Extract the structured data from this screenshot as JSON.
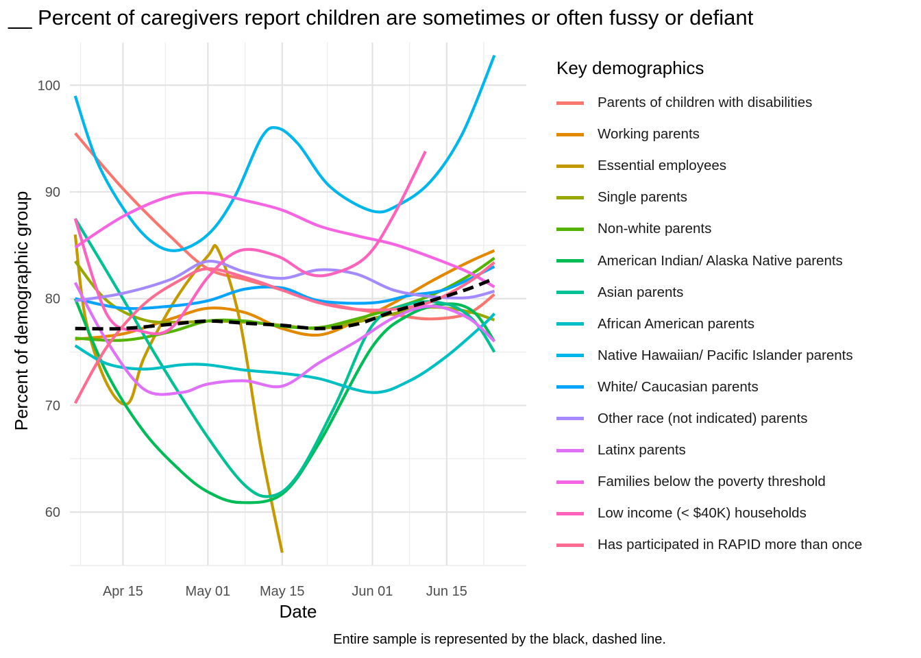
{
  "title": "__ Percent of caregivers report  children are sometimes or often fussy or defiant",
  "caption": "Entire sample is represented by the black, dashed line.",
  "chart_data": {
    "type": "line",
    "xlabel": "Date",
    "ylabel": "Percent of demographic group",
    "x_tick_labels": [
      "Apr 15",
      "May 01",
      "May 15",
      "Jun 01",
      "Jun 15"
    ],
    "x_ticks": [
      "2020-04-15",
      "2020-05-01",
      "2020-05-15",
      "2020-06-01",
      "2020-06-15"
    ],
    "x_range": [
      "2020-04-05",
      "2020-06-30"
    ],
    "y_ticks": [
      60,
      70,
      80,
      90,
      100
    ],
    "y_range": [
      55,
      104
    ],
    "grid": true,
    "legend_title": "Key demographics",
    "legend_position": "right",
    "series": [
      {
        "name": "Parents of children with disabilities",
        "color": "#F8766D",
        "x": [
          "2020-04-06",
          "2020-04-15",
          "2020-04-24",
          "2020-05-01",
          "2020-05-08",
          "2020-05-15",
          "2020-05-22",
          "2020-05-29",
          "2020-06-05",
          "2020-06-12",
          "2020-06-19",
          "2020-06-24"
        ],
        "y": [
          95.5,
          90.3,
          85.8,
          82.8,
          81.8,
          80.8,
          79.7,
          79.0,
          78.5,
          78.1,
          78.6,
          80.4
        ]
      },
      {
        "name": "Working parents",
        "color": "#E38900",
        "x": [
          "2020-04-06",
          "2020-04-15",
          "2020-04-24",
          "2020-05-01",
          "2020-05-08",
          "2020-05-15",
          "2020-05-22",
          "2020-05-29",
          "2020-06-05",
          "2020-06-12",
          "2020-06-19",
          "2020-06-24"
        ],
        "y": [
          76.2,
          76.7,
          78.1,
          79.1,
          78.7,
          77.2,
          76.6,
          77.9,
          79.6,
          81.6,
          83.4,
          84.5
        ]
      },
      {
        "name": "Essential employees",
        "color": "#C49A00",
        "x": [
          "2020-04-06",
          "2020-04-08",
          "2020-04-12",
          "2020-04-16",
          "2020-04-19",
          "2020-04-25",
          "2020-05-01",
          "2020-05-03",
          "2020-05-07",
          "2020-05-11",
          "2020-05-15"
        ],
        "y": [
          86.0,
          78.0,
          72.0,
          70.2,
          74.5,
          80.0,
          84.0,
          84.5,
          78.0,
          66.0,
          56.2
        ]
      },
      {
        "name": "Single parents",
        "color": "#99A800",
        "x": [
          "2020-04-06",
          "2020-04-12",
          "2020-04-19",
          "2020-04-26",
          "2020-05-01",
          "2020-05-08",
          "2020-05-15",
          "2020-05-22",
          "2020-05-29",
          "2020-06-05",
          "2020-06-12",
          "2020-06-19",
          "2020-06-24"
        ],
        "y": [
          83.5,
          79.8,
          78.0,
          77.8,
          77.9,
          77.8,
          77.5,
          77.2,
          77.8,
          78.6,
          79.2,
          78.8,
          78.0
        ]
      },
      {
        "name": "Non-white parents",
        "color": "#53B400",
        "x": [
          "2020-04-06",
          "2020-04-15",
          "2020-04-24",
          "2020-05-01",
          "2020-05-08",
          "2020-05-15",
          "2020-05-22",
          "2020-05-29",
          "2020-06-05",
          "2020-06-12",
          "2020-06-19",
          "2020-06-24"
        ],
        "y": [
          76.3,
          76.1,
          76.9,
          77.9,
          77.9,
          77.4,
          77.3,
          78.1,
          79.1,
          80.3,
          82.1,
          83.8
        ]
      },
      {
        "name": "American Indian/ Alaska Native parents",
        "color": "#00BC56",
        "x": [
          "2020-04-06",
          "2020-04-12",
          "2020-04-19",
          "2020-04-26",
          "2020-05-01",
          "2020-05-07",
          "2020-05-15",
          "2020-05-22",
          "2020-06-01",
          "2020-06-08",
          "2020-06-15",
          "2020-06-20",
          "2020-06-24"
        ],
        "y": [
          80.0,
          73.0,
          67.5,
          63.8,
          61.9,
          60.9,
          61.7,
          66.5,
          75.5,
          78.5,
          79.5,
          78.8,
          76.0
        ]
      },
      {
        "name": "Asian parents",
        "color": "#00C094",
        "x": [
          "2020-04-06",
          "2020-04-15",
          "2020-04-22",
          "2020-05-01",
          "2020-05-08",
          "2020-05-13",
          "2020-05-18",
          "2020-05-25",
          "2020-06-01",
          "2020-06-08",
          "2020-06-15",
          "2020-06-20",
          "2020-06-24"
        ],
        "y": [
          87.5,
          80.0,
          74.0,
          67.0,
          62.5,
          61.5,
          63.5,
          70.0,
          77.5,
          79.5,
          79.5,
          78.0,
          75.0
        ]
      },
      {
        "name": "African American parents",
        "color": "#00BFC4",
        "x": [
          "2020-04-06",
          "2020-04-12",
          "2020-04-19",
          "2020-04-26",
          "2020-05-01",
          "2020-05-08",
          "2020-05-15",
          "2020-05-22",
          "2020-06-01",
          "2020-06-08",
          "2020-06-15",
          "2020-06-22",
          "2020-06-24"
        ],
        "y": [
          75.6,
          73.9,
          73.4,
          73.8,
          73.8,
          73.3,
          73.0,
          72.5,
          71.2,
          72.3,
          74.6,
          77.6,
          78.6
        ]
      },
      {
        "name": "Native Hawaiian/ Pacific Islander parents",
        "color": "#00B6EB",
        "x": [
          "2020-04-06",
          "2020-04-10",
          "2020-04-15",
          "2020-04-20",
          "2020-04-25",
          "2020-05-01",
          "2020-05-06",
          "2020-05-11",
          "2020-05-14",
          "2020-05-18",
          "2020-05-24",
          "2020-06-01",
          "2020-06-06",
          "2020-06-12",
          "2020-06-18",
          "2020-06-24"
        ],
        "y": [
          99.0,
          93.0,
          88.5,
          85.5,
          84.5,
          86.0,
          89.5,
          95.0,
          96.0,
          94.5,
          90.5,
          88.2,
          88.8,
          91.0,
          95.5,
          102.8
        ]
      },
      {
        "name": "White/ Caucasian parents",
        "color": "#06A4FF",
        "x": [
          "2020-04-06",
          "2020-04-15",
          "2020-04-24",
          "2020-05-01",
          "2020-05-08",
          "2020-05-15",
          "2020-05-22",
          "2020-06-01",
          "2020-06-08",
          "2020-06-15",
          "2020-06-24"
        ],
        "y": [
          80.0,
          79.1,
          79.3,
          79.8,
          80.9,
          81.0,
          79.8,
          79.6,
          80.3,
          80.9,
          83.0
        ]
      },
      {
        "name": "Other race (not indicated) parents",
        "color": "#A58AFF",
        "x": [
          "2020-04-06",
          "2020-04-15",
          "2020-04-24",
          "2020-05-01",
          "2020-05-08",
          "2020-05-15",
          "2020-05-22",
          "2020-05-29",
          "2020-06-05",
          "2020-06-12",
          "2020-06-19",
          "2020-06-24"
        ],
        "y": [
          79.8,
          80.5,
          81.8,
          83.5,
          82.5,
          81.9,
          82.7,
          82.3,
          80.8,
          80.2,
          80.1,
          80.7
        ]
      },
      {
        "name": "Latinx parents",
        "color": "#DF70F8",
        "x": [
          "2020-04-06",
          "2020-04-12",
          "2020-04-19",
          "2020-04-26",
          "2020-05-01",
          "2020-05-08",
          "2020-05-15",
          "2020-05-22",
          "2020-05-29",
          "2020-06-05",
          "2020-06-12",
          "2020-06-19",
          "2020-06-24"
        ],
        "y": [
          81.5,
          76.0,
          71.5,
          71.2,
          72.0,
          72.3,
          71.8,
          74.0,
          76.0,
          78.2,
          79.3,
          78.2,
          76.0
        ]
      },
      {
        "name": "Families below the poverty threshold",
        "color": "#F564E3",
        "x": [
          "2020-04-06",
          "2020-04-15",
          "2020-04-24",
          "2020-05-01",
          "2020-05-08",
          "2020-05-15",
          "2020-05-22",
          "2020-05-29",
          "2020-06-05",
          "2020-06-12",
          "2020-06-19",
          "2020-06-24"
        ],
        "y": [
          84.8,
          87.7,
          89.6,
          89.9,
          89.2,
          88.3,
          86.8,
          85.9,
          85.1,
          83.9,
          82.5,
          81.1
        ]
      },
      {
        "name": "Low income (< $40K) households",
        "color": "#FF62BC",
        "x": [
          "2020-04-06",
          "2020-04-12",
          "2020-04-18",
          "2020-04-24",
          "2020-05-01",
          "2020-05-07",
          "2020-05-14",
          "2020-05-20",
          "2020-05-25",
          "2020-05-31",
          "2020-06-05",
          "2020-06-11"
        ],
        "y": [
          87.5,
          78.5,
          77.0,
          77.2,
          82.0,
          84.5,
          84.0,
          82.3,
          82.4,
          84.0,
          87.8,
          93.8
        ]
      },
      {
        "name": "Has participated in RAPID more than once",
        "color": "#FF6C91",
        "x": [
          "2020-04-06",
          "2020-04-12",
          "2020-04-19",
          "2020-04-26",
          "2020-05-01",
          "2020-05-08",
          "2020-05-15",
          "2020-05-22",
          "2020-05-29",
          "2020-06-05",
          "2020-06-12",
          "2020-06-19",
          "2020-06-24"
        ],
        "y": [
          70.2,
          75.5,
          79.5,
          81.8,
          82.8,
          82.0,
          80.8,
          79.6,
          79.0,
          79.0,
          79.7,
          81.5,
          83.4
        ]
      },
      {
        "name": "Entire sample",
        "color": "#000000",
        "dashed": true,
        "in_legend": false,
        "x": [
          "2020-04-06",
          "2020-04-15",
          "2020-04-24",
          "2020-05-01",
          "2020-05-08",
          "2020-05-15",
          "2020-05-22",
          "2020-05-29",
          "2020-06-05",
          "2020-06-12",
          "2020-06-19",
          "2020-06-24"
        ],
        "y": [
          77.2,
          77.2,
          77.6,
          77.9,
          77.7,
          77.5,
          77.2,
          77.6,
          78.8,
          79.8,
          80.9,
          81.9
        ]
      }
    ]
  }
}
